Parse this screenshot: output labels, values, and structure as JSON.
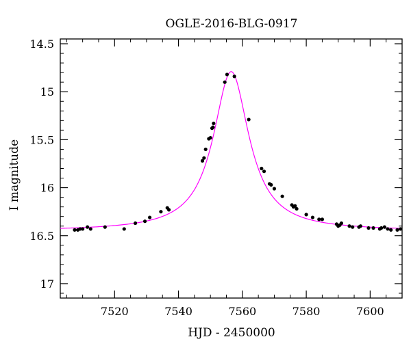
{
  "chart_data": {
    "type": "scatter",
    "title": "OGLE-2016-BLG-0917",
    "xlabel": "HJD - 2450000",
    "ylabel": "I magnitude",
    "xlim": [
      7503,
      7610
    ],
    "ylim": [
      17.15,
      14.45
    ],
    "y_inverted": true,
    "x_major_ticks": [
      7520,
      7540,
      7560,
      7580,
      7600
    ],
    "x_tick_labels": [
      "7520",
      "7540",
      "7560",
      "7580",
      "7600"
    ],
    "x_minor_step": 5,
    "y_major_ticks": [
      14.5,
      15,
      15.5,
      16,
      16.5,
      17
    ],
    "y_tick_labels": [
      "14.5",
      "15",
      "15.5",
      "16",
      "16.5",
      "17"
    ],
    "y_minor_step": 0.1,
    "grid": false,
    "legend": "none",
    "colors": {
      "points": "#000000",
      "model": "#ff00ff",
      "axes": "#000000"
    },
    "model": {
      "t0": 7556.5,
      "baseline_mag": 16.45,
      "peak_mag": 14.79
    },
    "series": [
      {
        "values": [
          {
            "x": 7507.5,
            "y": 16.44
          },
          {
            "x": 7508.5,
            "y": 16.44
          },
          {
            "x": 7509.2,
            "y": 16.43
          },
          {
            "x": 7510.0,
            "y": 16.43
          },
          {
            "x": 7511.5,
            "y": 16.41
          },
          {
            "x": 7512.5,
            "y": 16.43
          },
          {
            "x": 7517.0,
            "y": 16.41
          },
          {
            "x": 7523.0,
            "y": 16.43
          },
          {
            "x": 7526.5,
            "y": 16.37
          },
          {
            "x": 7529.5,
            "y": 16.35
          },
          {
            "x": 7531.0,
            "y": 16.31
          },
          {
            "x": 7534.5,
            "y": 16.25
          },
          {
            "x": 7536.5,
            "y": 16.21
          },
          {
            "x": 7537.0,
            "y": 16.23
          },
          {
            "x": 7547.5,
            "y": 15.72
          },
          {
            "x": 7548.0,
            "y": 15.69
          },
          {
            "x": 7548.5,
            "y": 15.6
          },
          {
            "x": 7549.5,
            "y": 15.49
          },
          {
            "x": 7550.0,
            "y": 15.48
          },
          {
            "x": 7550.5,
            "y": 15.38
          },
          {
            "x": 7550.8,
            "y": 15.37
          },
          {
            "x": 7551.0,
            "y": 15.33
          },
          {
            "x": 7554.5,
            "y": 14.9
          },
          {
            "x": 7555.2,
            "y": 14.82
          },
          {
            "x": 7557.5,
            "y": 14.84
          },
          {
            "x": 7562.0,
            "y": 15.29
          },
          {
            "x": 7566.0,
            "y": 15.8
          },
          {
            "x": 7566.8,
            "y": 15.83
          },
          {
            "x": 7568.5,
            "y": 15.96
          },
          {
            "x": 7569.0,
            "y": 15.97
          },
          {
            "x": 7570.0,
            "y": 16.01
          },
          {
            "x": 7572.5,
            "y": 16.09
          },
          {
            "x": 7575.5,
            "y": 16.18
          },
          {
            "x": 7576.0,
            "y": 16.2
          },
          {
            "x": 7576.5,
            "y": 16.19
          },
          {
            "x": 7577.0,
            "y": 16.22
          },
          {
            "x": 7580.0,
            "y": 16.28
          },
          {
            "x": 7582.0,
            "y": 16.31
          },
          {
            "x": 7584.0,
            "y": 16.33
          },
          {
            "x": 7585.0,
            "y": 16.33
          },
          {
            "x": 7589.5,
            "y": 16.38
          },
          {
            "x": 7590.0,
            "y": 16.4
          },
          {
            "x": 7590.5,
            "y": 16.39
          },
          {
            "x": 7591.0,
            "y": 16.37
          },
          {
            "x": 7593.5,
            "y": 16.4
          },
          {
            "x": 7594.5,
            "y": 16.41
          },
          {
            "x": 7596.5,
            "y": 16.41
          },
          {
            "x": 7597.0,
            "y": 16.4
          },
          {
            "x": 7599.5,
            "y": 16.42
          },
          {
            "x": 7601.0,
            "y": 16.42
          },
          {
            "x": 7603.0,
            "y": 16.43
          },
          {
            "x": 7603.5,
            "y": 16.42
          },
          {
            "x": 7604.5,
            "y": 16.41
          },
          {
            "x": 7605.5,
            "y": 16.43
          },
          {
            "x": 7606.5,
            "y": 16.44
          },
          {
            "x": 7608.5,
            "y": 16.44
          },
          {
            "x": 7609.5,
            "y": 16.43
          }
        ]
      }
    ]
  }
}
